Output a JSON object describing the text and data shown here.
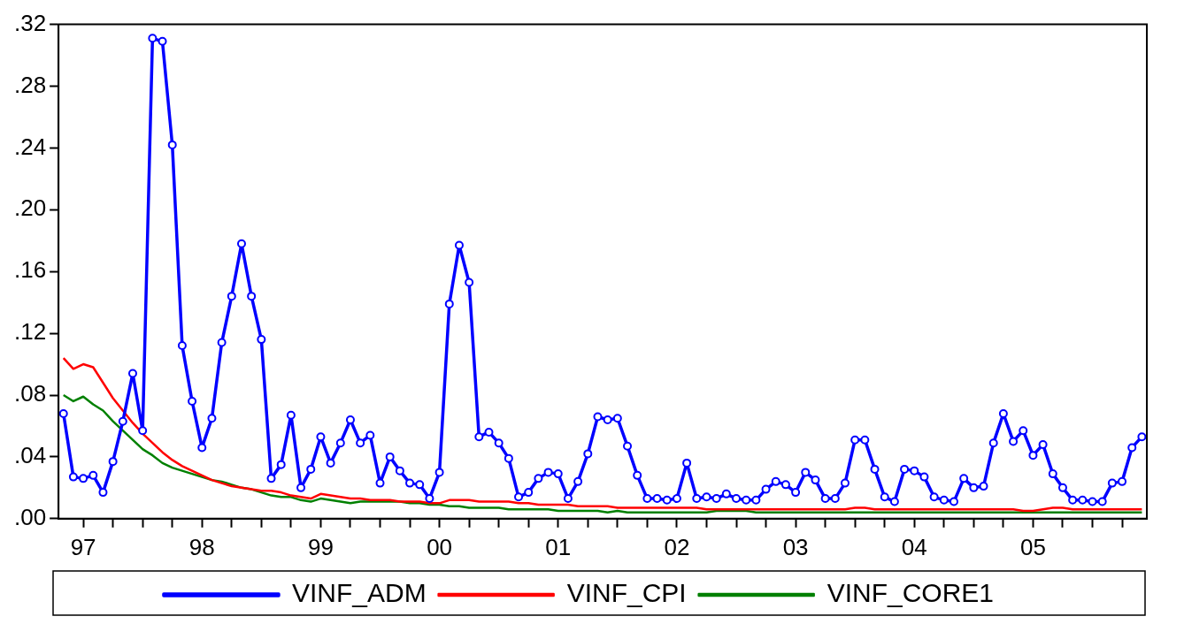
{
  "chart_data": {
    "type": "line",
    "categories": [
      null,
      null,
      "97",
      null,
      null,
      null,
      null,
      null,
      null,
      null,
      null,
      null,
      null,
      null,
      "98",
      null,
      null,
      null,
      null,
      null,
      null,
      null,
      null,
      null,
      null,
      null,
      "99",
      null,
      null,
      null,
      null,
      null,
      null,
      null,
      null,
      null,
      null,
      null,
      "00",
      null,
      null,
      null,
      null,
      null,
      null,
      null,
      null,
      null,
      null,
      null,
      "01",
      null,
      null,
      null,
      null,
      null,
      null,
      null,
      null,
      null,
      null,
      null,
      "02",
      null,
      null,
      null,
      null,
      null,
      null,
      null,
      null,
      null,
      null,
      null,
      "03",
      null,
      null,
      null,
      null,
      null,
      null,
      null,
      null,
      null,
      null,
      null,
      "04",
      null,
      null,
      null,
      null,
      null,
      null,
      null,
      null,
      null,
      null,
      null,
      "05",
      null,
      null,
      null,
      null,
      null,
      null,
      null,
      null,
      null,
      null,
      null
    ],
    "series": [
      {
        "name": "VINF_ADM",
        "color": "#0000ff",
        "marker": "circle",
        "values": [
          0.068,
          0.027,
          0.026,
          0.028,
          0.017,
          0.037,
          0.063,
          0.094,
          0.057,
          0.311,
          0.309,
          0.242,
          0.112,
          0.076,
          0.046,
          0.065,
          0.114,
          0.144,
          0.178,
          0.144,
          0.116,
          0.026,
          0.035,
          0.067,
          0.02,
          0.032,
          0.053,
          0.036,
          0.049,
          0.064,
          0.049,
          0.054,
          0.023,
          0.04,
          0.031,
          0.023,
          0.022,
          0.013,
          0.03,
          0.139,
          0.177,
          0.153,
          0.053,
          0.056,
          0.049,
          0.039,
          0.014,
          0.017,
          0.026,
          0.03,
          0.029,
          0.013,
          0.024,
          0.042,
          0.066,
          0.064,
          0.065,
          0.047,
          0.028,
          0.013,
          0.013,
          0.012,
          0.013,
          0.036,
          0.013,
          0.014,
          0.013,
          0.016,
          0.013,
          0.012,
          0.012,
          0.019,
          0.024,
          0.022,
          0.017,
          0.03,
          0.025,
          0.013,
          0.013,
          0.023,
          0.051,
          0.051,
          0.032,
          0.014,
          0.011,
          0.032,
          0.031,
          0.027,
          0.014,
          0.012,
          0.011,
          0.026,
          0.02,
          0.021,
          0.049,
          0.068,
          0.05,
          0.057,
          0.041,
          0.048,
          0.029,
          0.02,
          0.012,
          0.012,
          0.011,
          0.011,
          0.023,
          0.024,
          0.046,
          0.053
        ]
      },
      {
        "name": "VINF_CPI",
        "color": "#ff0000",
        "marker": "none",
        "values": [
          0.104,
          0.097,
          0.1,
          0.098,
          0.088,
          0.078,
          0.07,
          0.062,
          0.055,
          0.049,
          0.043,
          0.038,
          0.034,
          0.031,
          0.028,
          0.025,
          0.023,
          0.021,
          0.02,
          0.019,
          0.018,
          0.018,
          0.017,
          0.015,
          0.014,
          0.013,
          0.016,
          0.015,
          0.014,
          0.013,
          0.013,
          0.012,
          0.012,
          0.012,
          0.011,
          0.011,
          0.011,
          0.01,
          0.01,
          0.012,
          0.012,
          0.012,
          0.011,
          0.011,
          0.011,
          0.011,
          0.01,
          0.01,
          0.009,
          0.009,
          0.009,
          0.009,
          0.008,
          0.008,
          0.008,
          0.008,
          0.007,
          0.007,
          0.007,
          0.007,
          0.007,
          0.007,
          0.007,
          0.007,
          0.007,
          0.006,
          0.006,
          0.006,
          0.006,
          0.006,
          0.006,
          0.006,
          0.006,
          0.006,
          0.006,
          0.006,
          0.006,
          0.006,
          0.006,
          0.006,
          0.007,
          0.007,
          0.006,
          0.006,
          0.006,
          0.006,
          0.006,
          0.006,
          0.006,
          0.006,
          0.006,
          0.006,
          0.006,
          0.006,
          0.006,
          0.006,
          0.006,
          0.005,
          0.005,
          0.006,
          0.007,
          0.007,
          0.006,
          0.006,
          0.006,
          0.006,
          0.006,
          0.006,
          0.006,
          0.006
        ]
      },
      {
        "name": "VINF_CORE1",
        "color": "#008000",
        "marker": "none",
        "values": [
          0.08,
          0.076,
          0.079,
          0.074,
          0.07,
          0.063,
          0.057,
          0.051,
          0.045,
          0.041,
          0.036,
          0.033,
          0.031,
          0.029,
          0.027,
          0.025,
          0.024,
          0.022,
          0.02,
          0.019,
          0.017,
          0.015,
          0.014,
          0.014,
          0.012,
          0.011,
          0.013,
          0.012,
          0.011,
          0.01,
          0.011,
          0.011,
          0.011,
          0.011,
          0.011,
          0.01,
          0.01,
          0.009,
          0.009,
          0.008,
          0.008,
          0.007,
          0.007,
          0.007,
          0.007,
          0.006,
          0.006,
          0.006,
          0.006,
          0.006,
          0.005,
          0.005,
          0.005,
          0.005,
          0.005,
          0.004,
          0.005,
          0.004,
          0.004,
          0.004,
          0.004,
          0.004,
          0.004,
          0.004,
          0.004,
          0.004,
          0.005,
          0.005,
          0.005,
          0.005,
          0.004,
          0.004,
          0.004,
          0.004,
          0.004,
          0.004,
          0.004,
          0.004,
          0.004,
          0.004,
          0.004,
          0.004,
          0.004,
          0.004,
          0.004,
          0.004,
          0.004,
          0.004,
          0.004,
          0.004,
          0.004,
          0.004,
          0.004,
          0.004,
          0.004,
          0.004,
          0.004,
          0.004,
          0.004,
          0.004,
          0.004,
          0.004,
          0.004,
          0.004,
          0.004,
          0.004,
          0.004,
          0.004,
          0.004,
          0.004
        ]
      }
    ],
    "ylim": [
      0,
      0.32
    ],
    "yticks": [
      {
        "value": 0,
        "label": ".00"
      },
      {
        "value": 0.04,
        "label": ".04"
      },
      {
        "value": 0.08,
        "label": ".08"
      },
      {
        "value": 0.12,
        "label": ".12"
      },
      {
        "value": 0.16,
        "label": ".16"
      },
      {
        "value": 0.2,
        "label": ".20"
      },
      {
        "value": 0.24,
        "label": ".24"
      },
      {
        "value": 0.28,
        "label": ".28"
      },
      {
        "value": 0.32,
        "label": ".32"
      }
    ],
    "grid": false,
    "legend": "bottom",
    "line_style": "solid"
  }
}
